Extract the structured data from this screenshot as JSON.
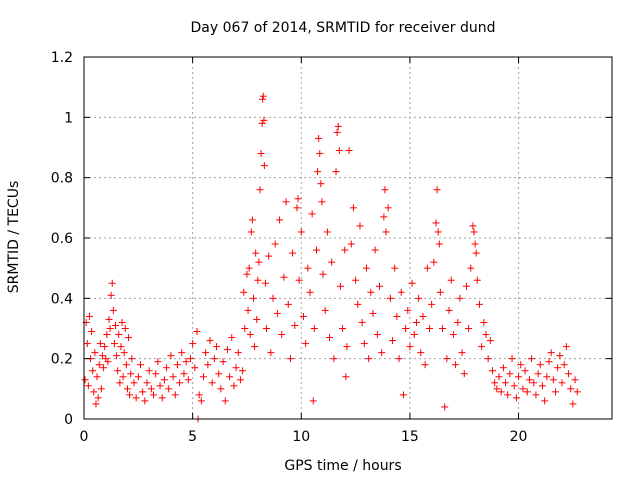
{
  "chart_data": {
    "type": "scatter",
    "title": "Day 067 of 2014, SRMTID for receiver dund",
    "xlabel": "GPS time / hours",
    "ylabel": "SRMTID / TECUs",
    "xlim": [
      0,
      24.3
    ],
    "ylim": [
      0,
      1.2
    ],
    "grid": true,
    "marker": "+",
    "color": "#ff0000",
    "x_ticks": [
      0,
      5,
      10,
      15,
      20
    ],
    "y_ticks": [
      0,
      0.2,
      0.4,
      0.6,
      0.8,
      1,
      1.2
    ],
    "x_tick_labels": [
      "0",
      "5",
      "10",
      "15",
      "20"
    ],
    "y_tick_labels": [
      "0",
      "0.2",
      "0.4",
      "0.6",
      "0.8",
      "1",
      "1.2"
    ],
    "series": [
      {
        "name": "SRMTID",
        "points": [
          [
            0.05,
            0.13
          ],
          [
            0.1,
            0.32
          ],
          [
            0.15,
            0.25
          ],
          [
            0.2,
            0.11
          ],
          [
            0.25,
            0.34
          ],
          [
            0.3,
            0.2
          ],
          [
            0.35,
            0.29
          ],
          [
            0.4,
            0.16
          ],
          [
            0.45,
            0.09
          ],
          [
            0.5,
            0.22
          ],
          [
            0.55,
            0.05
          ],
          [
            0.6,
            0.14
          ],
          [
            0.65,
            0.07
          ],
          [
            0.7,
            0.18
          ],
          [
            0.75,
            0.25
          ],
          [
            0.8,
            0.1
          ],
          [
            0.85,
            0.21
          ],
          [
            0.9,
            0.17
          ],
          [
            0.95,
            0.24
          ],
          [
            1.0,
            0.2
          ],
          [
            1.05,
            0.28
          ],
          [
            1.1,
            0.19
          ],
          [
            1.15,
            0.33
          ],
          [
            1.2,
            0.3
          ],
          [
            1.25,
            0.41
          ],
          [
            1.3,
            0.45
          ],
          [
            1.35,
            0.36
          ],
          [
            1.4,
            0.25
          ],
          [
            1.45,
            0.31
          ],
          [
            1.5,
            0.21
          ],
          [
            1.55,
            0.16
          ],
          [
            1.6,
            0.28
          ],
          [
            1.65,
            0.12
          ],
          [
            1.7,
            0.24
          ],
          [
            1.75,
            0.32
          ],
          [
            1.8,
            0.14
          ],
          [
            1.85,
            0.22
          ],
          [
            1.9,
            0.3
          ],
          [
            1.95,
            0.18
          ],
          [
            2.0,
            0.1
          ],
          [
            2.05,
            0.27
          ],
          [
            2.1,
            0.08
          ],
          [
            2.15,
            0.15
          ],
          [
            2.2,
            0.2
          ],
          [
            2.3,
            0.12
          ],
          [
            2.4,
            0.07
          ],
          [
            2.5,
            0.14
          ],
          [
            2.6,
            0.18
          ],
          [
            2.7,
            0.09
          ],
          [
            2.8,
            0.06
          ],
          [
            2.9,
            0.12
          ],
          [
            3.0,
            0.16
          ],
          [
            3.1,
            0.1
          ],
          [
            3.2,
            0.08
          ],
          [
            3.3,
            0.15
          ],
          [
            3.4,
            0.19
          ],
          [
            3.5,
            0.11
          ],
          [
            3.6,
            0.07
          ],
          [
            3.7,
            0.13
          ],
          [
            3.8,
            0.17
          ],
          [
            3.9,
            0.1
          ],
          [
            4.0,
            0.21
          ],
          [
            4.1,
            0.14
          ],
          [
            4.2,
            0.08
          ],
          [
            4.3,
            0.18
          ],
          [
            4.4,
            0.12
          ],
          [
            4.5,
            0.22
          ],
          [
            4.6,
            0.15
          ],
          [
            4.7,
            0.19
          ],
          [
            4.8,
            0.13
          ],
          [
            4.9,
            0.2
          ],
          [
            5.0,
            0.25
          ],
          [
            5.1,
            0.17
          ],
          [
            5.2,
            0.29
          ],
          [
            5.25,
            0.0
          ],
          [
            5.3,
            0.08
          ],
          [
            5.4,
            0.06
          ],
          [
            5.5,
            0.14
          ],
          [
            5.6,
            0.22
          ],
          [
            5.7,
            0.18
          ],
          [
            5.8,
            0.26
          ],
          [
            5.9,
            0.12
          ],
          [
            6.0,
            0.2
          ],
          [
            6.1,
            0.24
          ],
          [
            6.2,
            0.15
          ],
          [
            6.3,
            0.1
          ],
          [
            6.4,
            0.19
          ],
          [
            6.5,
            0.06
          ],
          [
            6.6,
            0.23
          ],
          [
            6.7,
            0.14
          ],
          [
            6.8,
            0.27
          ],
          [
            6.9,
            0.11
          ],
          [
            7.0,
            0.17
          ],
          [
            7.1,
            0.22
          ],
          [
            7.2,
            0.13
          ],
          [
            7.3,
            0.16
          ],
          [
            7.35,
            0.42
          ],
          [
            7.4,
            0.3
          ],
          [
            7.5,
            0.48
          ],
          [
            7.55,
            0.36
          ],
          [
            7.6,
            0.5
          ],
          [
            7.65,
            0.28
          ],
          [
            7.7,
            0.62
          ],
          [
            7.75,
            0.66
          ],
          [
            7.8,
            0.4
          ],
          [
            7.85,
            0.24
          ],
          [
            7.9,
            0.55
          ],
          [
            7.95,
            0.33
          ],
          [
            8.0,
            0.46
          ],
          [
            8.05,
            0.52
          ],
          [
            8.1,
            0.76
          ],
          [
            8.15,
            0.88
          ],
          [
            8.2,
            0.98
          ],
          [
            8.22,
            1.06
          ],
          [
            8.25,
            1.07
          ],
          [
            8.28,
            0.99
          ],
          [
            8.3,
            0.84
          ],
          [
            8.35,
            0.45
          ],
          [
            8.4,
            0.3
          ],
          [
            8.5,
            0.54
          ],
          [
            8.6,
            0.22
          ],
          [
            8.7,
            0.4
          ],
          [
            8.8,
            0.58
          ],
          [
            8.9,
            0.35
          ],
          [
            9.0,
            0.66
          ],
          [
            9.1,
            0.28
          ],
          [
            9.2,
            0.47
          ],
          [
            9.3,
            0.72
          ],
          [
            9.4,
            0.38
          ],
          [
            9.5,
            0.2
          ],
          [
            9.6,
            0.55
          ],
          [
            9.7,
            0.31
          ],
          [
            9.8,
            0.7
          ],
          [
            9.85,
            0.73
          ],
          [
            9.9,
            0.46
          ],
          [
            10.0,
            0.62
          ],
          [
            10.1,
            0.34
          ],
          [
            10.2,
            0.25
          ],
          [
            10.3,
            0.5
          ],
          [
            10.4,
            0.42
          ],
          [
            10.5,
            0.68
          ],
          [
            10.55,
            0.06
          ],
          [
            10.6,
            0.3
          ],
          [
            10.7,
            0.56
          ],
          [
            10.75,
            0.82
          ],
          [
            10.8,
            0.93
          ],
          [
            10.85,
            0.88
          ],
          [
            10.9,
            0.78
          ],
          [
            10.95,
            0.72
          ],
          [
            11.0,
            0.48
          ],
          [
            11.1,
            0.36
          ],
          [
            11.2,
            0.62
          ],
          [
            11.3,
            0.27
          ],
          [
            11.4,
            0.52
          ],
          [
            11.5,
            0.2
          ],
          [
            11.6,
            0.82
          ],
          [
            11.65,
            0.95
          ],
          [
            11.7,
            0.97
          ],
          [
            11.75,
            0.89
          ],
          [
            11.8,
            0.44
          ],
          [
            11.9,
            0.3
          ],
          [
            12.0,
            0.56
          ],
          [
            12.05,
            0.14
          ],
          [
            12.1,
            0.24
          ],
          [
            12.2,
            0.89
          ],
          [
            12.3,
            0.58
          ],
          [
            12.4,
            0.7
          ],
          [
            12.5,
            0.46
          ],
          [
            12.6,
            0.38
          ],
          [
            12.7,
            0.64
          ],
          [
            12.8,
            0.32
          ],
          [
            12.9,
            0.25
          ],
          [
            13.0,
            0.5
          ],
          [
            13.1,
            0.2
          ],
          [
            13.2,
            0.42
          ],
          [
            13.3,
            0.35
          ],
          [
            13.4,
            0.56
          ],
          [
            13.5,
            0.28
          ],
          [
            13.6,
            0.44
          ],
          [
            13.7,
            0.22
          ],
          [
            13.8,
            0.67
          ],
          [
            13.85,
            0.76
          ],
          [
            13.9,
            0.62
          ],
          [
            14.0,
            0.7
          ],
          [
            14.1,
            0.4
          ],
          [
            14.2,
            0.26
          ],
          [
            14.3,
            0.5
          ],
          [
            14.4,
            0.34
          ],
          [
            14.5,
            0.2
          ],
          [
            14.6,
            0.42
          ],
          [
            14.7,
            0.08
          ],
          [
            14.8,
            0.3
          ],
          [
            14.9,
            0.36
          ],
          [
            15.0,
            0.24
          ],
          [
            15.1,
            0.45
          ],
          [
            15.2,
            0.28
          ],
          [
            15.3,
            0.32
          ],
          [
            15.4,
            0.4
          ],
          [
            15.5,
            0.22
          ],
          [
            15.6,
            0.34
          ],
          [
            15.7,
            0.18
          ],
          [
            15.8,
            0.5
          ],
          [
            15.9,
            0.3
          ],
          [
            16.0,
            0.38
          ],
          [
            16.1,
            0.52
          ],
          [
            16.2,
            0.65
          ],
          [
            16.25,
            0.76
          ],
          [
            16.3,
            0.62
          ],
          [
            16.35,
            0.58
          ],
          [
            16.4,
            0.42
          ],
          [
            16.5,
            0.3
          ],
          [
            16.6,
            0.04
          ],
          [
            16.7,
            0.2
          ],
          [
            16.8,
            0.36
          ],
          [
            16.9,
            0.46
          ],
          [
            17.0,
            0.28
          ],
          [
            17.1,
            0.18
          ],
          [
            17.2,
            0.32
          ],
          [
            17.3,
            0.4
          ],
          [
            17.4,
            0.22
          ],
          [
            17.5,
            0.15
          ],
          [
            17.6,
            0.44
          ],
          [
            17.7,
            0.3
          ],
          [
            17.8,
            0.5
          ],
          [
            17.9,
            0.64
          ],
          [
            17.95,
            0.62
          ],
          [
            18.0,
            0.58
          ],
          [
            18.05,
            0.55
          ],
          [
            18.1,
            0.46
          ],
          [
            18.2,
            0.38
          ],
          [
            18.3,
            0.24
          ],
          [
            18.4,
            0.32
          ],
          [
            18.5,
            0.28
          ],
          [
            18.6,
            0.2
          ],
          [
            18.7,
            0.26
          ],
          [
            18.8,
            0.16
          ],
          [
            18.9,
            0.12
          ],
          [
            19.0,
            0.1
          ],
          [
            19.1,
            0.14
          ],
          [
            19.2,
            0.09
          ],
          [
            19.3,
            0.17
          ],
          [
            19.4,
            0.12
          ],
          [
            19.5,
            0.08
          ],
          [
            19.6,
            0.15
          ],
          [
            19.7,
            0.2
          ],
          [
            19.8,
            0.11
          ],
          [
            19.9,
            0.07
          ],
          [
            20.0,
            0.14
          ],
          [
            20.1,
            0.18
          ],
          [
            20.2,
            0.1
          ],
          [
            20.3,
            0.16
          ],
          [
            20.4,
            0.09
          ],
          [
            20.5,
            0.13
          ],
          [
            20.6,
            0.2
          ],
          [
            20.7,
            0.12
          ],
          [
            20.8,
            0.08
          ],
          [
            20.9,
            0.15
          ],
          [
            21.0,
            0.18
          ],
          [
            21.1,
            0.11
          ],
          [
            21.2,
            0.06
          ],
          [
            21.3,
            0.14
          ],
          [
            21.4,
            0.19
          ],
          [
            21.5,
            0.22
          ],
          [
            21.6,
            0.13
          ],
          [
            21.7,
            0.09
          ],
          [
            21.8,
            0.17
          ],
          [
            21.9,
            0.21
          ],
          [
            22.0,
            0.12
          ],
          [
            22.1,
            0.18
          ],
          [
            22.2,
            0.24
          ],
          [
            22.3,
            0.15
          ],
          [
            22.4,
            0.1
          ],
          [
            22.5,
            0.05
          ],
          [
            22.6,
            0.13
          ],
          [
            22.7,
            0.09
          ]
        ]
      }
    ]
  }
}
